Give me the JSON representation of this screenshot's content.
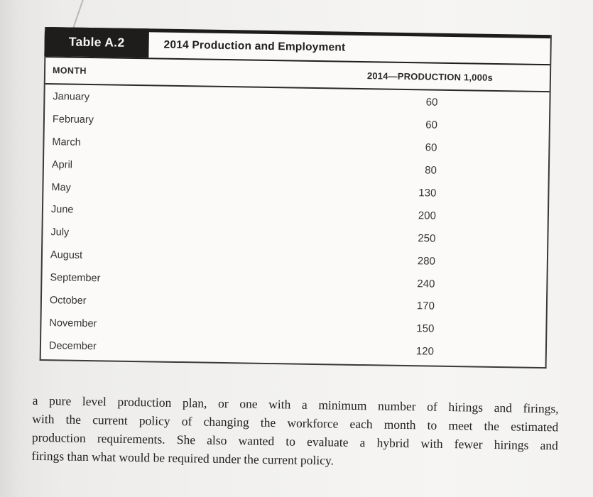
{
  "table": {
    "tab_label": "Table A.2",
    "title": "2014 Production and Employment",
    "columns": {
      "month": "MONTH",
      "production": "2014—PRODUCTION 1,000s"
    },
    "rows": [
      {
        "month": "January",
        "production": "60"
      },
      {
        "month": "February",
        "production": "60"
      },
      {
        "month": "March",
        "production": "60"
      },
      {
        "month": "April",
        "production": "80"
      },
      {
        "month": "May",
        "production": "130"
      },
      {
        "month": "June",
        "production": "200"
      },
      {
        "month": "July",
        "production": "250"
      },
      {
        "month": "August",
        "production": "280"
      },
      {
        "month": "September",
        "production": "240"
      },
      {
        "month": "October",
        "production": "170"
      },
      {
        "month": "November",
        "production": "150"
      },
      {
        "month": "December",
        "production": "120"
      }
    ]
  },
  "paragraph": {
    "lines": [
      "a pure level production plan, or one with a minimum number of hirings and firings,",
      "with the current policy of changing the workforce each month to meet the estimated",
      "production requirements. She also wanted to evaluate a hybrid with fewer hirings and",
      "firings than what would be required under the current policy."
    ],
    "text": "a pure level production plan, or one with a minimum number of hirings and firings, with the current policy of changing the workforce each month to meet the estimated production requirements. She also wanted to evaluate a hybrid with fewer hirings and firings than what would be required under the current policy."
  },
  "colors": {
    "ink_black": "#1e1d1b",
    "table_border": "#3a3937",
    "paper": "#f1f0ee",
    "table_background": "#fbfaf8",
    "text": "#343331"
  }
}
